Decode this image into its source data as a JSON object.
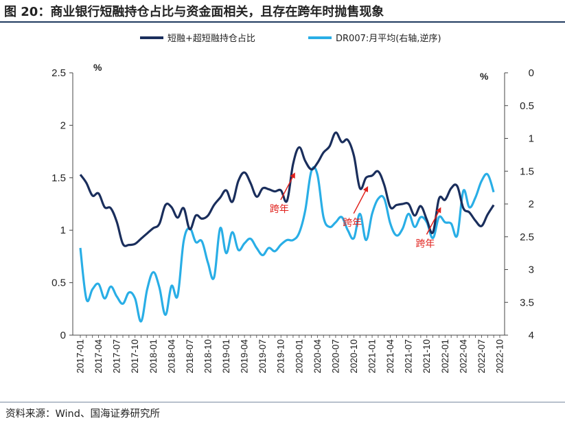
{
  "title": "图 20：商业银行短融持仓占比与资金面相关，且存在跨年时抛售现象",
  "source": "资料来源：Wind、国海证券研究所",
  "colors": {
    "series1": "#1a2e5c",
    "series2": "#29aee6",
    "annotation": "#e0201b"
  },
  "chart_data": {
    "type": "line",
    "legend_position": "top",
    "grid": false,
    "left_axis": {
      "unit": "%",
      "ylim": [
        0,
        2.5
      ],
      "ticks": [
        "0",
        "0.5",
        "1",
        "1.5",
        "2",
        "2.5"
      ]
    },
    "right_axis": {
      "unit": "%",
      "ylim": [
        0,
        4
      ],
      "reversed": true,
      "ticks": [
        "0",
        "0.5",
        "1",
        "1.5",
        "2",
        "2.5",
        "3",
        "3.5",
        "4"
      ]
    },
    "x_ticks": [
      "2017-01",
      "2017-04",
      "2017-07",
      "2017-10",
      "2018-01",
      "2018-04",
      "2018-07",
      "2018-10",
      "2019-01",
      "2019-04",
      "2019-07",
      "2019-10",
      "2020-01",
      "2020-04",
      "2020-07",
      "2020-10",
      "2021-01",
      "2021-04",
      "2021-07",
      "2021-10",
      "2022-01",
      "2022-04",
      "2022-07",
      "2022-10"
    ],
    "x_start": "2017-01",
    "x_end": "2022-10",
    "annotations": [
      {
        "text": "跨年",
        "date": "2019-12"
      },
      {
        "text": "跨年",
        "date": "2020-12"
      },
      {
        "text": "跨年",
        "date": "2021-12"
      }
    ],
    "series": [
      {
        "name": "短融+超短融持仓占比",
        "axis": "left",
        "values": [
          1.53,
          1.45,
          1.33,
          1.35,
          1.22,
          1.21,
          1.08,
          0.87,
          0.86,
          0.87,
          0.92,
          0.97,
          1.02,
          1.06,
          1.24,
          1.22,
          1.12,
          1.21,
          1.01,
          1.14,
          1.11,
          1.14,
          1.24,
          1.31,
          1.38,
          1.27,
          1.47,
          1.55,
          1.45,
          1.32,
          1.4,
          1.39,
          1.37,
          1.38,
          1.28,
          1.63,
          1.79,
          1.66,
          1.58,
          1.64,
          1.74,
          1.8,
          1.93,
          1.84,
          1.86,
          1.71,
          1.4,
          1.5,
          1.52,
          1.56,
          1.43,
          1.22,
          1.24,
          1.25,
          1.25,
          1.14,
          1.23,
          1.1,
          0.98,
          1.3,
          1.29,
          1.4,
          1.42,
          1.21,
          1.17,
          1.09,
          1.04,
          1.15,
          1.24
        ]
      },
      {
        "name": "DR007:月平均(右轴,逆序)",
        "axis": "right",
        "values": [
          2.67,
          3.45,
          3.3,
          3.22,
          3.44,
          3.26,
          3.41,
          3.52,
          3.35,
          3.44,
          3.79,
          3.3,
          3.04,
          3.27,
          3.69,
          3.25,
          3.4,
          2.57,
          2.37,
          2.58,
          2.57,
          2.9,
          3.12,
          2.37,
          2.75,
          2.43,
          2.7,
          2.6,
          2.53,
          2.67,
          2.78,
          2.67,
          2.72,
          2.62,
          2.55,
          2.55,
          2.44,
          2.1,
          1.5,
          1.55,
          2.2,
          2.35,
          2.28,
          2.2,
          2.4,
          2.52,
          2.15,
          2.55,
          2.15,
          1.92,
          1.92,
          2.3,
          2.48,
          2.38,
          2.15,
          2.35,
          2.2,
          2.28,
          2.52,
          2.2,
          2.28,
          2.3,
          2.48,
          1.8,
          2.05,
          1.9,
          1.65,
          1.55,
          1.82
        ]
      }
    ]
  }
}
